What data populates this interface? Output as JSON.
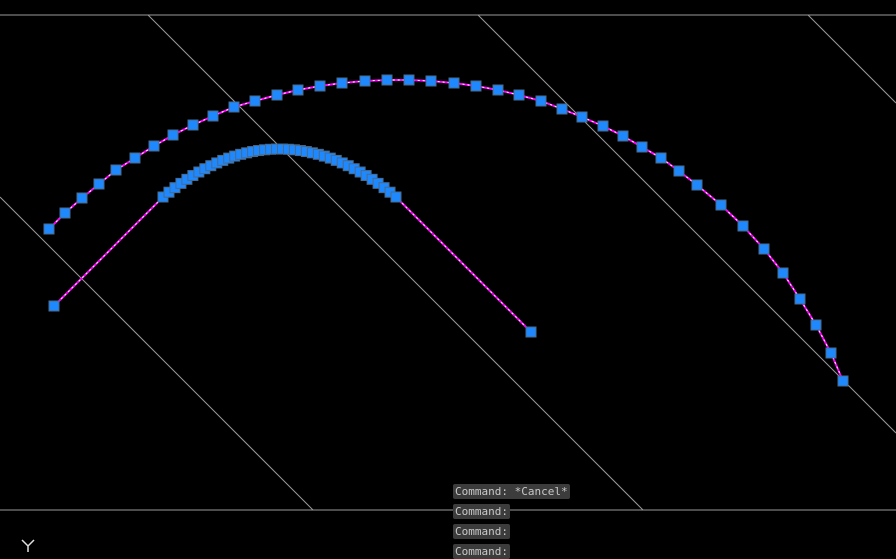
{
  "colors": {
    "background": "#000000",
    "grid_line": "#9a9a9a",
    "polyline": "#ff00ff",
    "grip": "#1e88ff",
    "grip_border": "#4a6a8a",
    "command_bg": "#3c3c3c",
    "command_text": "#c8c8c8"
  },
  "command_history": [
    "Command: *Cancel*",
    "Command:",
    "Command:",
    "Command:"
  ],
  "ucs_icon": {
    "axis_label": "Y"
  }
}
